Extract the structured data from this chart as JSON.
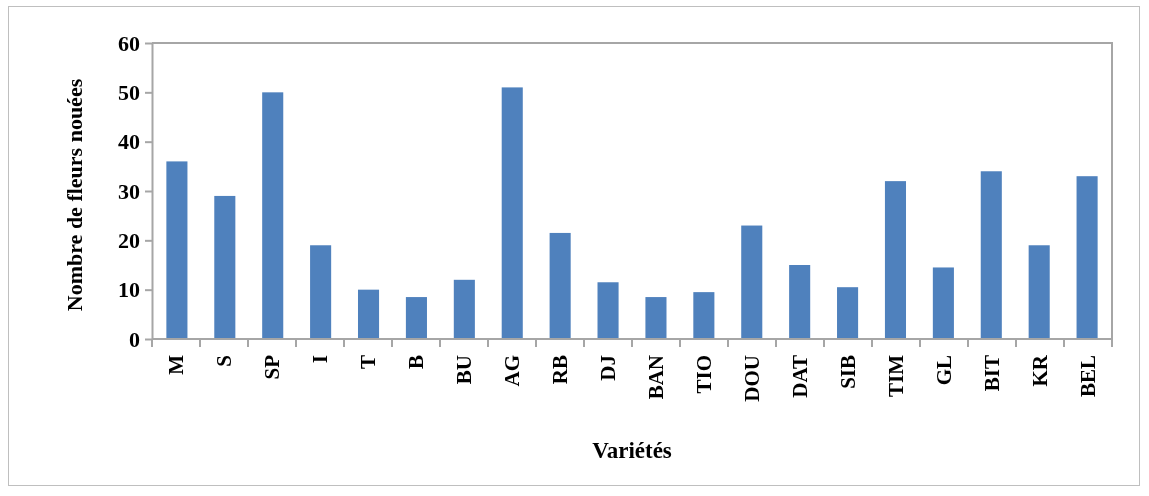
{
  "chart_data": {
    "type": "bar",
    "xlabel": "Variétés",
    "ylabel": "Nombre de fleurs nouées",
    "categories": [
      "M",
      "S",
      "SP",
      "I",
      "T",
      "B",
      "BU",
      "AG",
      "RB",
      "DJ",
      "BAN",
      "TIO",
      "DOU",
      "DAT",
      "SIB",
      "TIM",
      "GL",
      "BIT",
      "KR",
      "BEL"
    ],
    "values": [
      36,
      29,
      50,
      19,
      10,
      8.5,
      12,
      51,
      21.5,
      11.5,
      8.5,
      9.5,
      23,
      15,
      10.5,
      32,
      14.5,
      34,
      19,
      33
    ],
    "color": "#4f81bd",
    "ylim": [
      0,
      60
    ],
    "yticks": [
      0,
      10,
      20,
      30,
      40,
      50,
      60
    ]
  }
}
